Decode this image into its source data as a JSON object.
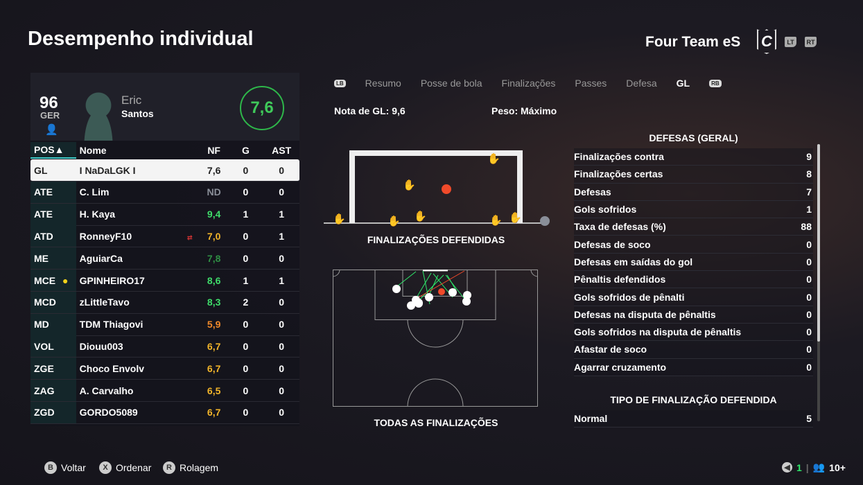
{
  "title": "Desempenho individual",
  "team": {
    "name": "Four Team eS",
    "crest_letter": "C",
    "lt": "LT",
    "rt": "RT"
  },
  "player": {
    "overall": "96",
    "nation": "GER",
    "first_name": "Eric",
    "last_name": "Santos",
    "rating": "7,6"
  },
  "table": {
    "headers": {
      "pos": "POS▲",
      "name": "Nome",
      "nf": "NF",
      "g": "G",
      "ast": "AST"
    },
    "rows": [
      {
        "pos": "GL",
        "name": "I NaDaLGK I",
        "nf": "7,6",
        "g": "0",
        "ast": "0",
        "color": "#222222",
        "selected": true
      },
      {
        "pos": "ATE",
        "name": "C. Lim",
        "nf": "ND",
        "g": "0",
        "ast": "0",
        "color": "#8a8f99"
      },
      {
        "pos": "ATE",
        "name": "H. Kaya",
        "nf": "9,4",
        "g": "1",
        "ast": "1",
        "color": "#3fdc6a"
      },
      {
        "pos": "ATD",
        "name": "RonneyF10",
        "nf": "7,0",
        "g": "0",
        "ast": "1",
        "color": "#f2b52a",
        "icon": "substitution-icon"
      },
      {
        "pos": "ME",
        "name": "AguiarCa",
        "nf": "7,8",
        "g": "0",
        "ast": "0",
        "color": "#2f8f44"
      },
      {
        "pos": "MCE",
        "name": "GPINHEIRO17",
        "nf": "8,6",
        "g": "1",
        "ast": "1",
        "color": "#3fdc6a",
        "icon": "man-of-match-ball-icon"
      },
      {
        "pos": "MCD",
        "name": "zLittleTavo",
        "nf": "8,3",
        "g": "2",
        "ast": "0",
        "color": "#3fdc6a"
      },
      {
        "pos": "MD",
        "name": "TDM Thiagovi",
        "nf": "5,9",
        "g": "0",
        "ast": "0",
        "color": "#f08a2a"
      },
      {
        "pos": "VOL",
        "name": "Diouu003",
        "nf": "6,7",
        "g": "0",
        "ast": "0",
        "color": "#f2b52a"
      },
      {
        "pos": "ZGE",
        "name": "Choco Envolv",
        "nf": "6,7",
        "g": "0",
        "ast": "0",
        "color": "#f2b52a"
      },
      {
        "pos": "ZAG",
        "name": "A. Carvalho",
        "nf": "6,5",
        "g": "0",
        "ast": "0",
        "color": "#f2b52a"
      },
      {
        "pos": "ZGD",
        "name": "GORDO5089",
        "nf": "6,7",
        "g": "0",
        "ast": "0",
        "color": "#f2b52a"
      }
    ]
  },
  "tabs": {
    "lb": "LB",
    "rb": "RB",
    "items": [
      "Resumo",
      "Posse de bola",
      "Finalizações",
      "Passes",
      "Defesa",
      "GL"
    ],
    "active": "GL"
  },
  "info": {
    "gk_rating": "Nota de GL: 9,6",
    "weight": "Peso: Máximo"
  },
  "captions": {
    "saved": "FINALIZAÇÕES DEFENDIDAS",
    "all": "TODAS AS FINALIZAÇÕES"
  },
  "stats": {
    "section1": "DEFESAS (GERAL)",
    "rows": [
      [
        "Finalizações contra",
        "9"
      ],
      [
        "Finalizações certas",
        "8"
      ],
      [
        "Defesas",
        "7"
      ],
      [
        "Gols sofridos",
        "1"
      ],
      [
        "Taxa de defesas (%)",
        "88"
      ],
      [
        "Defesas de soco",
        "0"
      ],
      [
        "Defesas em saídas do gol",
        "0"
      ],
      [
        "Pênaltis defendidos",
        "0"
      ],
      [
        "Gols sofridos de pênalti",
        "0"
      ],
      [
        "Defesas na disputa de pênaltis",
        "0"
      ],
      [
        "Gols sofridos na disputa de pênaltis",
        "0"
      ],
      [
        "Afastar de soco",
        "0"
      ],
      [
        "Agarrar cruzamento",
        "0"
      ]
    ],
    "section2": "TIPO DE FINALIZAÇÃO DEFENDIDA",
    "rows2": [
      [
        "Normal",
        "5"
      ]
    ]
  },
  "footer": {
    "back": {
      "key": "B",
      "label": "Voltar"
    },
    "sort": {
      "key": "X",
      "label": "Ordenar"
    },
    "scroll": {
      "key": "R",
      "label": "Rolagem"
    },
    "count": "1",
    "viewers": "10+"
  },
  "colors": {
    "accent": "#3cc9c6",
    "save": "#2ee86a",
    "goal": "#f04a2a"
  }
}
